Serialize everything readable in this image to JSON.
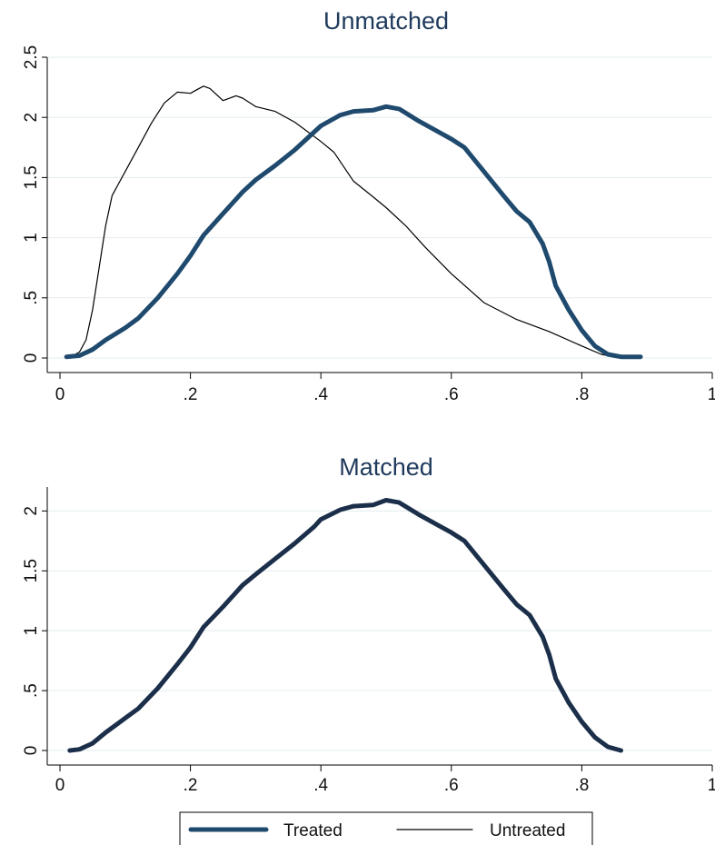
{
  "chart_data": [
    {
      "type": "line",
      "title": "Unmatched",
      "xlabel": "",
      "ylabel": "",
      "xlim": [
        0,
        1
      ],
      "ylim": [
        0,
        2.5
      ],
      "x_ticks": [
        0,
        0.2,
        0.4,
        0.6,
        0.8,
        1
      ],
      "x_tick_labels": [
        "0",
        ".2",
        ".4",
        ".6",
        ".8",
        "1"
      ],
      "y_ticks": [
        0,
        0.5,
        1,
        1.5,
        2,
        2.5
      ],
      "y_tick_labels": [
        "0",
        ".5",
        "1",
        "1.5",
        "2",
        "2.5"
      ],
      "grid": true,
      "series": [
        {
          "name": "Treated",
          "color": "#1f4a6e",
          "style": "thick",
          "x": [
            0.01,
            0.03,
            0.05,
            0.07,
            0.1,
            0.12,
            0.15,
            0.18,
            0.2,
            0.22,
            0.25,
            0.28,
            0.3,
            0.33,
            0.36,
            0.39,
            0.4,
            0.43,
            0.45,
            0.48,
            0.5,
            0.52,
            0.55,
            0.58,
            0.6,
            0.62,
            0.65,
            0.68,
            0.7,
            0.72,
            0.74,
            0.75,
            0.76,
            0.78,
            0.8,
            0.82,
            0.84,
            0.86,
            0.88,
            0.89
          ],
          "y": [
            0.01,
            0.02,
            0.07,
            0.15,
            0.25,
            0.33,
            0.5,
            0.7,
            0.85,
            1.02,
            1.2,
            1.38,
            1.48,
            1.6,
            1.73,
            1.88,
            1.93,
            2.02,
            2.05,
            2.06,
            2.09,
            2.07,
            1.97,
            1.88,
            1.82,
            1.75,
            1.55,
            1.35,
            1.22,
            1.13,
            0.95,
            0.8,
            0.6,
            0.4,
            0.23,
            0.1,
            0.03,
            0.01,
            0.01,
            0.01
          ]
        },
        {
          "name": "Untreated",
          "color": "#000000",
          "style": "thin",
          "x": [
            0.01,
            0.02,
            0.03,
            0.04,
            0.05,
            0.06,
            0.07,
            0.08,
            0.09,
            0.1,
            0.12,
            0.14,
            0.16,
            0.18,
            0.2,
            0.21,
            0.22,
            0.23,
            0.25,
            0.27,
            0.28,
            0.3,
            0.33,
            0.36,
            0.4,
            0.42,
            0.45,
            0.48,
            0.5,
            0.53,
            0.56,
            0.6,
            0.65,
            0.7,
            0.75,
            0.8,
            0.83,
            0.85
          ],
          "y": [
            0.01,
            0.02,
            0.05,
            0.15,
            0.4,
            0.75,
            1.1,
            1.35,
            1.45,
            1.55,
            1.75,
            1.95,
            2.12,
            2.21,
            2.2,
            2.23,
            2.26,
            2.24,
            2.14,
            2.18,
            2.16,
            2.09,
            2.05,
            1.96,
            1.8,
            1.71,
            1.47,
            1.34,
            1.25,
            1.1,
            0.92,
            0.7,
            0.46,
            0.32,
            0.22,
            0.1,
            0.03,
            0.01
          ]
        }
      ]
    },
    {
      "type": "line",
      "title": "Matched",
      "xlabel": "",
      "ylabel": "",
      "xlim": [
        0,
        1
      ],
      "ylim": [
        0,
        2.2
      ],
      "x_ticks": [
        0,
        0.2,
        0.4,
        0.6,
        0.8,
        1
      ],
      "x_tick_labels": [
        "0",
        ".2",
        ".4",
        ".6",
        ".8",
        "1"
      ],
      "y_ticks": [
        0,
        0.5,
        1,
        1.5,
        2
      ],
      "y_tick_labels": [
        "0",
        ".5",
        "1",
        "1.5",
        "2"
      ],
      "grid": true,
      "series": [
        {
          "name": "Treated",
          "color": "#1c2f4a",
          "style": "thick",
          "x": [
            0.015,
            0.03,
            0.05,
            0.07,
            0.1,
            0.12,
            0.15,
            0.18,
            0.2,
            0.22,
            0.25,
            0.28,
            0.3,
            0.33,
            0.36,
            0.39,
            0.4,
            0.43,
            0.45,
            0.48,
            0.5,
            0.52,
            0.55,
            0.58,
            0.6,
            0.62,
            0.65,
            0.68,
            0.7,
            0.72,
            0.74,
            0.75,
            0.76,
            0.78,
            0.8,
            0.82,
            0.84,
            0.86
          ],
          "y": [
            0.0,
            0.01,
            0.06,
            0.15,
            0.27,
            0.35,
            0.52,
            0.72,
            0.86,
            1.03,
            1.2,
            1.38,
            1.47,
            1.6,
            1.73,
            1.87,
            1.93,
            2.01,
            2.04,
            2.05,
            2.09,
            2.07,
            1.97,
            1.88,
            1.82,
            1.75,
            1.55,
            1.35,
            1.22,
            1.13,
            0.95,
            0.8,
            0.6,
            0.4,
            0.24,
            0.11,
            0.03,
            0.0
          ]
        }
      ]
    }
  ],
  "legend": {
    "placement": "bottom",
    "items": [
      {
        "label": "Treated",
        "color": "#1f4a6e",
        "style": "thick"
      },
      {
        "label": "Untreated",
        "color": "#000000",
        "style": "thin"
      }
    ]
  }
}
